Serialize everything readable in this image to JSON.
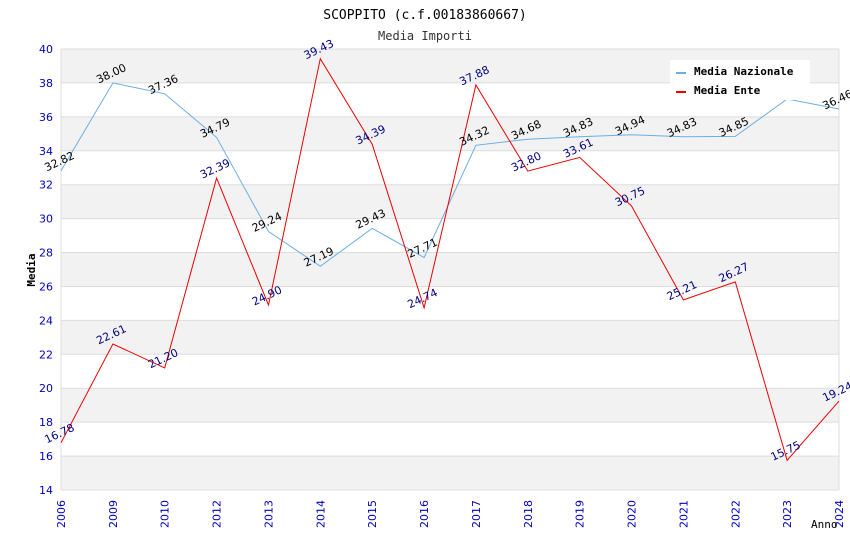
{
  "chart_data": {
    "type": "line",
    "title": "SCOPPITO (c.f.00183860667)",
    "subtitle": "Media Importi",
    "xlabel": "Anno",
    "ylabel": "Media",
    "ylim": [
      14,
      40
    ],
    "y_ticks": [
      14,
      16,
      18,
      20,
      22,
      24,
      26,
      28,
      30,
      32,
      34,
      36,
      38,
      40
    ],
    "categories": [
      "2006",
      "2009",
      "2010",
      "2012",
      "2013",
      "2014",
      "2015",
      "2016",
      "2017",
      "2018",
      "2019",
      "2020",
      "2021",
      "2022",
      "2023",
      "2024"
    ],
    "legend_position": "top-right",
    "grid": true,
    "series": [
      {
        "name": "Media Nazionale",
        "color": "#6aaee6",
        "label_color": "#000000",
        "values": [
          32.82,
          38.0,
          37.36,
          34.79,
          29.24,
          27.19,
          29.43,
          27.71,
          34.32,
          34.68,
          34.83,
          34.94,
          34.83,
          34.85,
          37.05,
          36.46
        ],
        "labels": [
          "32.82",
          "38.00",
          "37.36",
          "34.79",
          "29.24",
          "27.19",
          "29.43",
          "27.71",
          "34.32",
          "34.68",
          "34.83",
          "34.94",
          "34.83",
          "34.85",
          "",
          "36.46"
        ]
      },
      {
        "name": "Media Ente",
        "color": "#ee0000",
        "label_color": "#000080",
        "values": [
          16.78,
          22.61,
          21.2,
          32.39,
          24.9,
          39.43,
          34.39,
          24.74,
          37.88,
          32.8,
          33.61,
          30.75,
          25.21,
          26.27,
          15.75,
          19.24
        ],
        "labels": [
          "16.78",
          "22.61",
          "21.20",
          "32.39",
          "24.90",
          "39.43",
          "34.39",
          "24.74",
          "37.88",
          "32.80",
          "33.61",
          "30.75",
          "25.21",
          "26.27",
          "15.75",
          "19.24"
        ]
      }
    ]
  },
  "colors": {
    "band": "#f2f2f2",
    "grid": "#dddddd",
    "axis_tick_text": "#0000c0"
  }
}
